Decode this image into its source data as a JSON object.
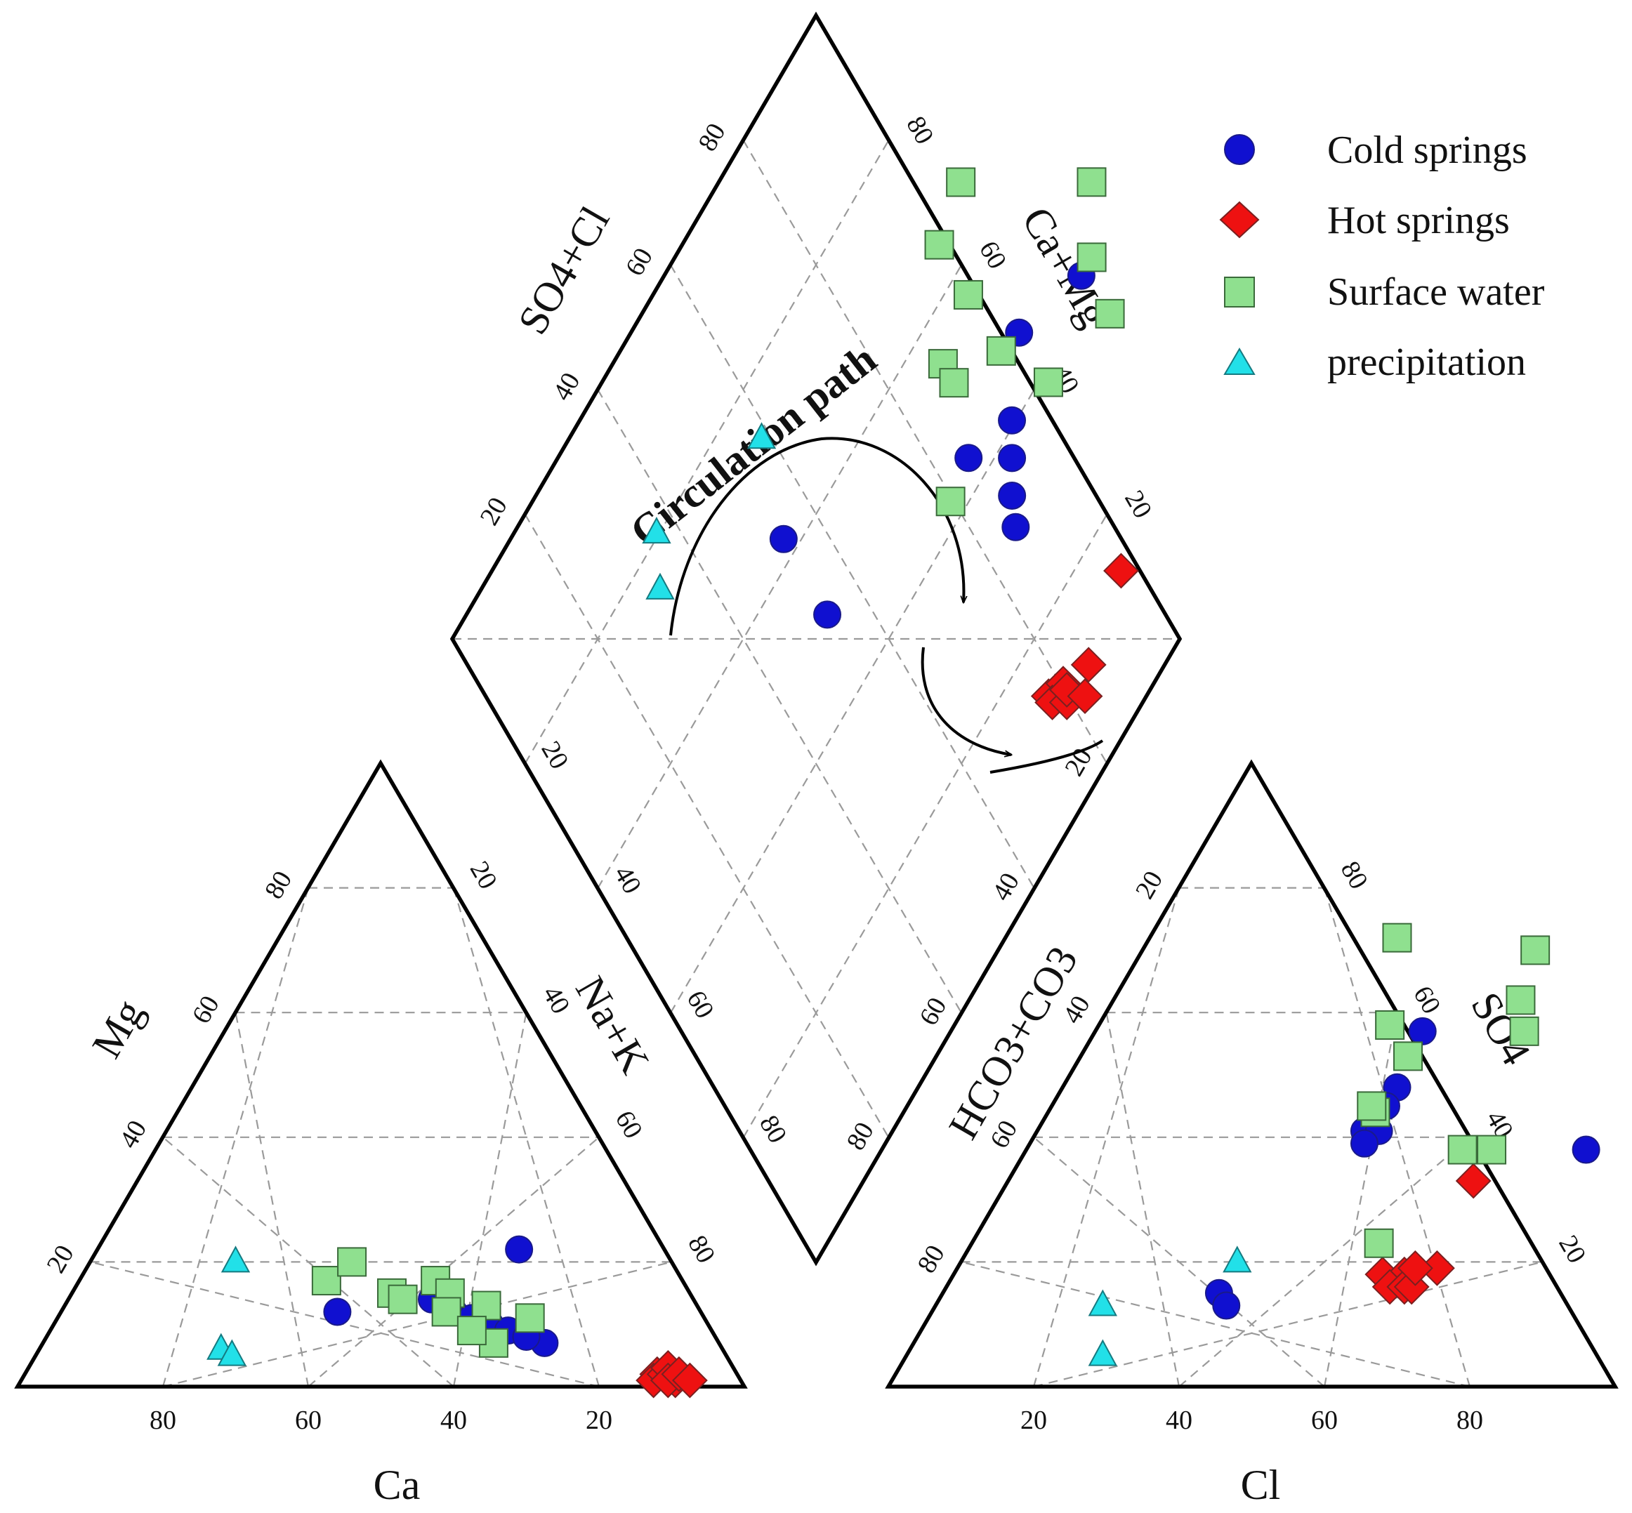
{
  "chart_data": {
    "type": "piper",
    "cation_triangle": {
      "axes": {
        "left": "Mg",
        "bottom": "Ca",
        "right": "Na+K"
      },
      "ticks": [
        "20",
        "40",
        "60",
        "80"
      ]
    },
    "anion_triangle": {
      "axes": {
        "left": "HCO3+CO3",
        "bottom": "Cl",
        "right": "SO4"
      },
      "ticks": [
        "20",
        "40",
        "60",
        "80"
      ]
    },
    "diamond": {
      "axes": {
        "upper_left": "SO4+Cl",
        "upper_right": "Ca+Mg"
      },
      "ticks": [
        "20",
        "40",
        "60",
        "80"
      ]
    },
    "annotation": "Circulation path",
    "colors": {
      "cold": "#1010d0",
      "hot": "#ee1111",
      "surface": "#8fe08f",
      "precip": "#22e0e8",
      "grid": "#9a9a9a"
    },
    "series": [
      {
        "name": "Cold springs",
        "marker": "circle",
        "color": "#1010d0",
        "cations": [
          [
            20,
            22
          ],
          [
            50,
            12
          ],
          [
            36,
            14
          ],
          [
            34,
            12
          ],
          [
            30,
            10
          ],
          [
            28,
            9
          ],
          [
            24,
            7
          ],
          [
            26,
            8
          ],
          [
            32,
            11
          ]
        ],
        "anions": [
          [
            77,
            38
          ],
          [
            38,
            15
          ],
          [
            40,
            13
          ],
          [
            45,
            57
          ],
          [
            46,
            48
          ],
          [
            46,
            45
          ],
          [
            45,
            41
          ],
          [
            47,
            41
          ],
          [
            46,
            39
          ]
        ]
      },
      {
        "name": "Hot springs",
        "marker": "diamond",
        "color": "#ee1111",
        "cations": [
          [
            11,
            2
          ],
          [
            12,
            1
          ],
          [
            10,
            2
          ],
          [
            9,
            3
          ],
          [
            9,
            1
          ],
          [
            10,
            1
          ],
          [
            8,
            2
          ],
          [
            7,
            1
          ]
        ],
        "anions": [
          [
            64,
            33
          ],
          [
            59,
            18
          ],
          [
            62,
            18
          ],
          [
            61,
            16
          ],
          [
            63,
            16
          ],
          [
            64,
            16
          ],
          [
            66,
            19
          ],
          [
            63,
            19
          ]
        ]
      },
      {
        "name": "Surface water",
        "marker": "square",
        "color": "#8fe08f",
        "cations": [
          [
            49,
            17
          ],
          [
            44,
            20
          ],
          [
            41,
            15
          ],
          [
            40,
            14
          ],
          [
            34,
            17
          ],
          [
            33,
            15
          ],
          [
            29,
            13
          ],
          [
            24,
            11
          ],
          [
            35,
            12
          ],
          [
            31,
            7
          ],
          [
            33,
            9
          ]
        ],
        "anions": [
          [
            34,
            72
          ],
          [
            40,
            58
          ],
          [
            45,
            53
          ],
          [
            45,
            44
          ],
          [
            44,
            45
          ],
          [
            54,
            70
          ],
          [
            56,
            62
          ],
          [
            59,
            57
          ],
          [
            60,
            38
          ],
          [
            64,
            38
          ],
          [
            56,
            23
          ]
        ]
      },
      {
        "name": "precipitation",
        "marker": "triangle",
        "color": "#22e0e8",
        "cations": [
          [
            60,
            20
          ],
          [
            69,
            6
          ],
          [
            68,
            5
          ]
        ],
        "anions": [
          [
            23,
            13
          ],
          [
            27,
            5
          ],
          [
            38,
            20
          ]
        ]
      }
    ]
  }
}
